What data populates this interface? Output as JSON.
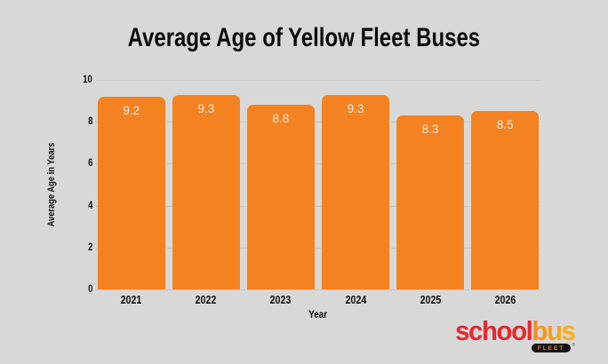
{
  "title": "Average Age of Yellow Fleet Buses",
  "chart_data": {
    "type": "bar",
    "categories": [
      "2021",
      "2022",
      "2023",
      "2024",
      "2025",
      "2026"
    ],
    "values": [
      9.2,
      9.3,
      8.8,
      9.3,
      8.3,
      8.5
    ],
    "title": "Average Age of Yellow Fleet Buses",
    "xlabel": "Year",
    "ylabel": "Average Age in Years",
    "ylim": [
      0,
      10
    ],
    "yticks": [
      0,
      2,
      4,
      6,
      8,
      10
    ],
    "grid": true,
    "legend": "none",
    "bar_color": "#F58220",
    "value_label_color": "#ECEAE4",
    "background_color": "#D8D8D8",
    "gridline_color": "#C7C8C9"
  },
  "logo": {
    "school": "school",
    "bus": "bus",
    "badge": "FLEET",
    "reg": "®",
    "school_color": "#E6292E",
    "bus_color_start": "#F68B1E",
    "bus_color_end": "#FDB414"
  }
}
